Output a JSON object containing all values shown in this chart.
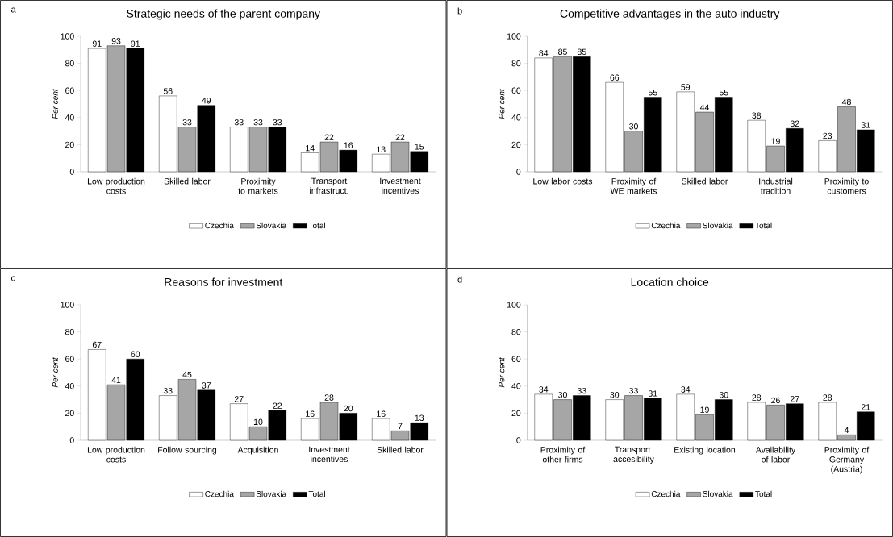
{
  "chart_data": [
    {
      "type": "bar",
      "title": "Strategic needs of the parent company",
      "annotations": [
        "a"
      ],
      "ylabel": "Per cent",
      "ylim": [
        0,
        100
      ],
      "yticks": [
        0,
        20,
        40,
        60,
        80,
        100
      ],
      "data_labels": true,
      "legend": "bottom",
      "categories": [
        "Low production costs",
        "Skilled labor",
        "Proximity to markets",
        "Transport infrastruct.",
        "Investment incentives"
      ],
      "series": [
        {
          "name": "Czechia",
          "color": "#ffffff",
          "values": [
            91,
            56,
            33,
            14,
            13
          ]
        },
        {
          "name": "Slovakia",
          "color": "#a6a6a6",
          "values": [
            93,
            33,
            33,
            22,
            22
          ]
        },
        {
          "name": "Total",
          "color": "#000000",
          "values": [
            91,
            49,
            33,
            16,
            15
          ]
        }
      ]
    },
    {
      "type": "bar",
      "title": "Competitive advantages in the auto industry",
      "annotations": [
        "b"
      ],
      "ylabel": "Per cent",
      "ylim": [
        0,
        100
      ],
      "yticks": [
        0,
        20,
        40,
        60,
        80,
        100
      ],
      "data_labels": true,
      "legend": "bottom",
      "categories": [
        "Low labor costs",
        "Proximity of WE markets",
        "Skilled labor",
        "Industrial tradition",
        "Proximity to customers"
      ],
      "series": [
        {
          "name": "Czechia",
          "color": "#ffffff",
          "values": [
            84,
            66,
            59,
            38,
            23
          ]
        },
        {
          "name": "Slovakia",
          "color": "#a6a6a6",
          "values": [
            85,
            30,
            44,
            19,
            48
          ]
        },
        {
          "name": "Total",
          "color": "#000000",
          "values": [
            85,
            55,
            55,
            32,
            31
          ]
        }
      ]
    },
    {
      "type": "bar",
      "title": "Reasons for investment",
      "annotations": [
        "c"
      ],
      "ylabel": "Per cent",
      "ylim": [
        0,
        100
      ],
      "yticks": [
        0,
        20,
        40,
        60,
        80,
        100
      ],
      "data_labels": true,
      "legend": "bottom",
      "categories": [
        "Low production costs",
        "Follow sourcing",
        "Acquisition",
        "Investment incentives",
        "Skilled labor"
      ],
      "series": [
        {
          "name": "Czechia",
          "color": "#ffffff",
          "values": [
            67,
            33,
            27,
            16,
            16
          ]
        },
        {
          "name": "Slovakia",
          "color": "#a6a6a6",
          "values": [
            41,
            45,
            10,
            28,
            7
          ]
        },
        {
          "name": "Total",
          "color": "#000000",
          "values": [
            60,
            37,
            22,
            20,
            13
          ]
        }
      ]
    },
    {
      "type": "bar",
      "title": "Location choice",
      "annotations": [
        "d"
      ],
      "ylabel": "Per cent",
      "ylim": [
        0,
        100
      ],
      "yticks": [
        0,
        20,
        40,
        60,
        80,
        100
      ],
      "data_labels": true,
      "legend": "bottom",
      "categories": [
        "Proximity of other firms",
        "Transport. accesibility",
        "Existing location",
        "Availability of labor",
        "Proximity of Germany (Austria)"
      ],
      "series": [
        {
          "name": "Czechia",
          "color": "#ffffff",
          "values": [
            34,
            30,
            34,
            28,
            28
          ]
        },
        {
          "name": "Slovakia",
          "color": "#a6a6a6",
          "values": [
            30,
            33,
            19,
            26,
            4
          ]
        },
        {
          "name": "Total",
          "color": "#000000",
          "values": [
            33,
            31,
            30,
            27,
            21
          ]
        }
      ]
    }
  ]
}
